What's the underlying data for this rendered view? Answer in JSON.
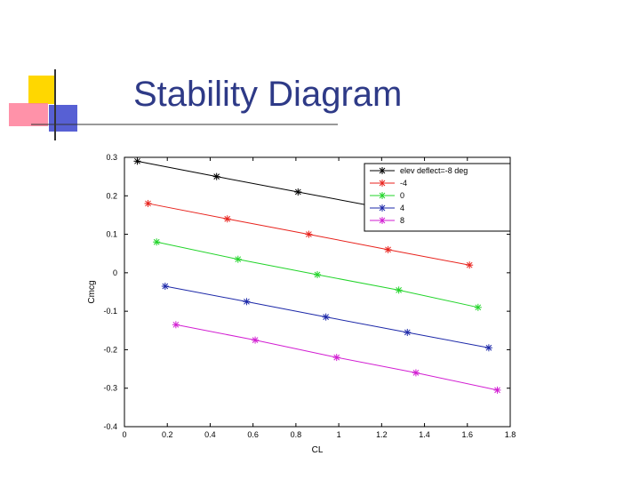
{
  "slide": {
    "title": "Stability Diagram"
  },
  "chart_data": {
    "type": "line",
    "title": "",
    "xlabel": "CL",
    "ylabel": "Cmcg",
    "xlim": [
      0,
      1.8
    ],
    "ylim": [
      -0.4,
      0.3
    ],
    "xticks": [
      "0",
      "0.2",
      "0.4",
      "0.6",
      "0.8",
      "1",
      "1.2",
      "1.4",
      "1.6",
      "1.8"
    ],
    "yticks": [
      "0.3",
      "0.2",
      "0.1",
      "0",
      "-0.1",
      "-0.2",
      "-0.3",
      "-0.4"
    ],
    "grid": false,
    "legend_position": "top-right",
    "series": [
      {
        "name": "elev deflect=-8 deg",
        "color": "#000000",
        "x": [
          0.06,
          0.43,
          0.81,
          1.19,
          1.56
        ],
        "y": [
          0.29,
          0.25,
          0.21,
          0.17,
          0.13
        ]
      },
      {
        "name": "-4",
        "color": "#e8221c",
        "x": [
          0.11,
          0.48,
          0.86,
          1.23,
          1.61
        ],
        "y": [
          0.18,
          0.14,
          0.1,
          0.06,
          0.02
        ]
      },
      {
        "name": "0",
        "color": "#22d42a",
        "x": [
          0.15,
          0.53,
          0.9,
          1.28,
          1.65
        ],
        "y": [
          0.08,
          0.035,
          -0.005,
          -0.045,
          -0.09
        ]
      },
      {
        "name": "4",
        "color": "#1c28a8",
        "x": [
          0.19,
          0.57,
          0.94,
          1.32,
          1.7
        ],
        "y": [
          -0.035,
          -0.075,
          -0.115,
          -0.155,
          -0.195
        ]
      },
      {
        "name": "8",
        "color": "#d21ed2",
        "x": [
          0.24,
          0.61,
          0.99,
          1.36,
          1.74
        ],
        "y": [
          -0.135,
          -0.175,
          -0.22,
          -0.26,
          -0.305
        ]
      }
    ]
  }
}
